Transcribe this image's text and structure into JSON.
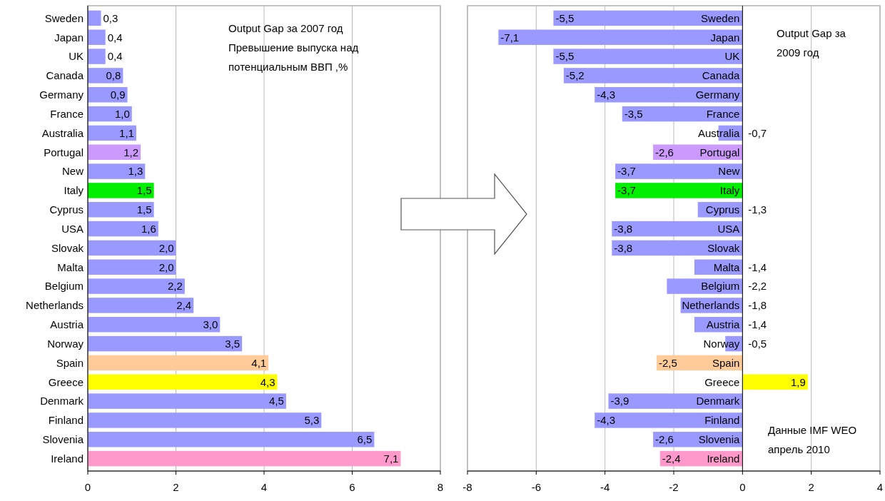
{
  "chart_data": [
    {
      "type": "bar",
      "orientation": "horizontal",
      "categories": [
        "Sweden",
        "Japan",
        "UK",
        "Canada",
        "Germany",
        "France",
        "Australia",
        "Portugal",
        "New",
        "Italy",
        "Cyprus",
        "USA",
        "Slovak",
        "Malta",
        "Belgium",
        "Netherlands",
        "Austria",
        "Norway",
        "Spain",
        "Greece",
        "Denmark",
        "Finland",
        "Slovenia",
        "Ireland"
      ],
      "values": [
        0.3,
        0.4,
        0.4,
        0.8,
        0.9,
        1.0,
        1.1,
        1.2,
        1.3,
        1.5,
        1.5,
        1.6,
        2.0,
        2.0,
        2.2,
        2.4,
        3.0,
        3.5,
        4.1,
        4.3,
        4.5,
        5.3,
        6.5,
        7.1
      ],
      "value_labels": [
        "0,3",
        "0,4",
        "0,4",
        "0,8",
        "0,9",
        "1,0",
        "1,1",
        "1,2",
        "1,3",
        "1,5",
        "1,5",
        "1,6",
        "2,0",
        "2,0",
        "2,2",
        "2,4",
        "3,0",
        "3,5",
        "4,1",
        "4,3",
        "4,5",
        "5,3",
        "6,5",
        "7,1"
      ],
      "colors": [
        "#9999ff",
        "#9999ff",
        "#9999ff",
        "#9999ff",
        "#9999ff",
        "#9999ff",
        "#9999ff",
        "#cc99ff",
        "#9999ff",
        "#00ee00",
        "#9999ff",
        "#9999ff",
        "#9999ff",
        "#9999ff",
        "#9999ff",
        "#9999ff",
        "#9999ff",
        "#9999ff",
        "#ffcc99",
        "#ffff00",
        "#9999ff",
        "#9999ff",
        "#9999ff",
        "#ff99cc"
      ],
      "xlim": [
        0,
        8
      ],
      "xticks": [
        0,
        2,
        4,
        6,
        8
      ],
      "grid": "x",
      "annotations": [
        "Output Gap за 2007 год",
        "Превышение выпуска над потенциальным ВВП ,%"
      ]
    },
    {
      "type": "bar",
      "orientation": "horizontal",
      "categories": [
        "Sweden",
        "Japan",
        "UK",
        "Canada",
        "Germany",
        "France",
        "Australia",
        "Portugal",
        "New",
        "Italy",
        "Cyprus",
        "USA",
        "Slovak",
        "Malta",
        "Belgium",
        "Netherlands",
        "Austria",
        "Norway",
        "Spain",
        "Greece",
        "Denmark",
        "Finland",
        "Slovenia",
        "Ireland"
      ],
      "values": [
        -5.5,
        -7.1,
        -5.5,
        -5.2,
        -4.3,
        -3.5,
        -0.7,
        -2.6,
        -3.7,
        -3.7,
        -1.3,
        -3.8,
        -3.8,
        -1.4,
        -2.2,
        -1.8,
        -1.4,
        -0.5,
        -2.5,
        1.9,
        -3.9,
        -4.3,
        -2.6,
        -2.4
      ],
      "value_labels": [
        "-5,5",
        "-7,1",
        "-5,5",
        "-5,2",
        "-4,3",
        "-3,5",
        "-0,7",
        "-2,6",
        "-3,7",
        "-3,7",
        "-1,3",
        "-3,8",
        "-3,8",
        "-1,4",
        "-2,2",
        "-1,8",
        "-1,4",
        "-0,5",
        "-2,5",
        "1,9",
        "-3,9",
        "-4,3",
        "-2,6",
        "-2,4"
      ],
      "colors": [
        "#9999ff",
        "#9999ff",
        "#9999ff",
        "#9999ff",
        "#9999ff",
        "#9999ff",
        "#9999ff",
        "#cc99ff",
        "#9999ff",
        "#00ee00",
        "#9999ff",
        "#9999ff",
        "#9999ff",
        "#9999ff",
        "#9999ff",
        "#9999ff",
        "#9999ff",
        "#9999ff",
        "#ffcc99",
        "#ffff00",
        "#9999ff",
        "#9999ff",
        "#9999ff",
        "#ff99cc"
      ],
      "xlim": [
        -8,
        4
      ],
      "xticks": [
        -8,
        -6,
        -4,
        -2,
        0,
        2,
        4
      ],
      "grid": "x",
      "annotations": [
        "Output Gap за 2009 год",
        "Данные IMF WEO апрель 2010"
      ]
    }
  ]
}
